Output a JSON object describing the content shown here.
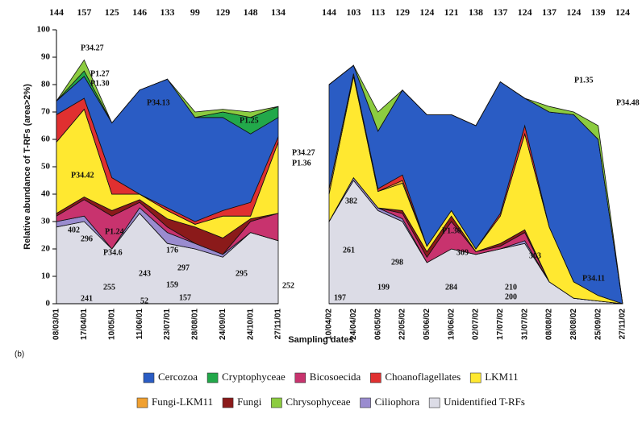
{
  "chart_data": {
    "type": "area",
    "stacked": true,
    "ylabel": "Relative abundance of T-RFs (area>2%)",
    "xlabel": "Sampling dates",
    "panel_label": "(b)",
    "ylim": [
      0,
      100
    ],
    "yticks": [
      0,
      10,
      20,
      30,
      40,
      50,
      60,
      70,
      80,
      90,
      100
    ],
    "series": [
      {
        "name": "Unidentified T-RFs",
        "color": "#dcdce6"
      },
      {
        "name": "Ciliophora",
        "color": "#9a8ccf"
      },
      {
        "name": "Bicosoecida",
        "color": "#c8336e"
      },
      {
        "name": "Fungi",
        "color": "#8b1a1a"
      },
      {
        "name": "LKM11",
        "color": "#ffe830"
      },
      {
        "name": "Fungi-LKM11",
        "color": "#f0a030"
      },
      {
        "name": "Choanoflagellates",
        "color": "#e03030"
      },
      {
        "name": "Cercozoa",
        "color": "#2a5cc4"
      },
      {
        "name": "Cryptophyceae",
        "color": "#22a84a"
      },
      {
        "name": "Chrysophyceae",
        "color": "#8ccc40"
      }
    ],
    "legend_order": [
      7,
      8,
      2,
      6,
      4,
      5,
      3,
      9,
      1,
      0
    ],
    "panels": [
      {
        "categories": [
          "08/03/01",
          "17/04/01",
          "10/05/01",
          "11/06/01",
          "23/07/01",
          "28/08/01",
          "24/09/01",
          "24/10/01",
          "27/11/01"
        ],
        "top_labels": [
          144,
          157,
          125,
          146,
          133,
          99,
          129,
          148,
          134
        ],
        "values": [
          [
            28,
            30,
            20,
            33,
            22,
            20,
            17,
            26,
            23
          ],
          [
            2,
            2,
            0,
            2,
            4,
            2,
            1,
            0,
            0
          ],
          [
            2,
            6,
            12,
            2,
            2,
            0,
            0,
            4,
            10
          ],
          [
            1,
            1,
            2,
            1,
            3,
            6,
            6,
            1,
            0
          ],
          [
            26,
            32,
            6,
            2,
            3,
            1,
            8,
            1,
            26
          ],
          [
            0,
            0,
            0,
            0,
            0,
            0,
            0,
            0,
            0
          ],
          [
            10,
            4,
            6,
            0,
            1,
            1,
            2,
            5,
            2
          ],
          [
            5,
            8,
            20,
            38,
            47,
            38,
            34,
            25,
            7
          ],
          [
            0,
            2,
            0,
            0,
            0,
            0,
            2,
            6,
            4
          ],
          [
            0,
            4,
            0,
            0,
            0,
            2,
            1,
            2,
            0
          ]
        ],
        "annotations": [
          "P34.27",
          "P1.27",
          "P1.30",
          "P34.13",
          "P1.25",
          "P34.42",
          "P1.24",
          "P34.6",
          "402",
          "296",
          "255",
          "241",
          "243",
          "176",
          "297",
          "159",
          "157",
          "52",
          "295",
          "252"
        ]
      },
      {
        "categories": [
          "10/04/02",
          "24/04/02",
          "06/05/02",
          "22/05/02",
          "05/06/02",
          "19/06/02",
          "02/07/02",
          "17/07/02",
          "31/07/02",
          "08/08/02",
          "28/08/02",
          "25/09/02",
          "27/11/02"
        ],
        "top_labels": [
          144,
          103,
          113,
          129,
          124,
          121,
          138,
          137,
          124,
          137,
          124,
          139,
          124
        ],
        "values": [
          [
            30,
            45,
            34,
            30,
            15,
            20,
            18,
            20,
            22,
            8,
            2,
            1,
            0
          ],
          [
            0,
            1,
            1,
            1,
            0,
            0,
            0,
            0,
            1,
            0,
            0,
            0,
            0
          ],
          [
            0,
            0,
            0,
            2,
            2,
            10,
            1,
            1,
            3,
            0,
            0,
            0,
            0
          ],
          [
            0,
            0,
            0,
            1,
            2,
            2,
            0,
            1,
            1,
            0,
            0,
            0,
            0
          ],
          [
            10,
            37,
            6,
            10,
            2,
            2,
            1,
            10,
            35,
            20,
            6,
            2,
            0
          ],
          [
            2,
            1,
            0,
            1,
            0,
            0,
            0,
            0,
            0,
            0,
            0,
            0,
            0
          ],
          [
            0,
            0,
            1,
            2,
            0,
            0,
            0,
            1,
            3,
            0,
            0,
            0,
            0
          ],
          [
            38,
            3,
            21,
            31,
            48,
            35,
            45,
            48,
            10,
            42,
            61,
            57,
            0
          ],
          [
            0,
            0,
            0,
            0,
            0,
            0,
            0,
            0,
            0,
            0,
            0,
            0,
            0
          ],
          [
            0,
            0,
            7,
            0,
            0,
            0,
            0,
            0,
            0,
            2,
            1,
            5,
            0
          ]
        ],
        "annotations": [
          "P34.27",
          "P1.36",
          "382",
          "261",
          "197",
          "199",
          "298",
          "P1.36",
          "309",
          "284",
          "210",
          "200",
          "303",
          "P34.11",
          "P1.35",
          "P34.48"
        ]
      }
    ]
  }
}
